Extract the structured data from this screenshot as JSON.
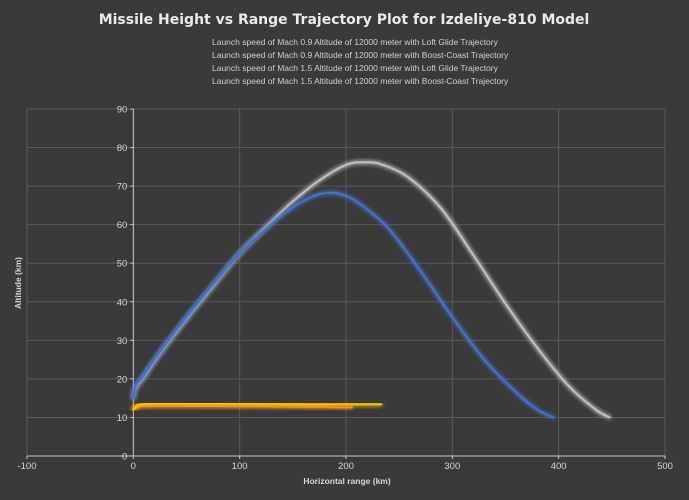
{
  "chart_data": {
    "type": "line",
    "title": "Missile Height vs Range Trajectory Plot for Izdeliye-810 Model",
    "xlabel": "Horizontal range (km)",
    "ylabel": "Altitude (km)",
    "xlim": [
      -100,
      500
    ],
    "ylim": [
      0,
      90
    ],
    "x_ticks": [
      "-100",
      "0",
      "100",
      "200",
      "300",
      "400",
      "500"
    ],
    "y_ticks": [
      "0",
      "10",
      "20",
      "30",
      "40",
      "50",
      "60",
      "70",
      "80",
      "90"
    ],
    "grid": true,
    "legend_position": "top",
    "series": [
      {
        "name": "Launch speed of Mach 0.9 Altitude of 12000 meter with Loft Glide Trajectory",
        "color": "#4472c4",
        "x": [
          0,
          2,
          10,
          25,
          50,
          75,
          100,
          125,
          150,
          170,
          185,
          200,
          215,
          240,
          270,
          300,
          330,
          360,
          380,
          395
        ],
        "y": [
          15,
          18,
          21,
          27,
          36,
          44.5,
          52.5,
          59,
          64.5,
          67.5,
          68.3,
          67.5,
          65,
          59,
          48,
          36,
          25,
          16.5,
          12,
          10
        ]
      },
      {
        "name": "Launch speed of Mach 0.9 Altitude of 12000 meter with Boost-Coast Trajectory",
        "color": "#ed7d31",
        "x": [
          0,
          3,
          8,
          20,
          50,
          100,
          150,
          200,
          205
        ],
        "y": [
          12,
          12.6,
          12.9,
          13,
          13,
          12.9,
          12.8,
          12.6,
          12.6
        ]
      },
      {
        "name": "Launch speed of Mach 1.5 Altitude of 12000 meter with Loft Glide Trajectory",
        "color": "#c0c0c0",
        "x": [
          0,
          2,
          10,
          25,
          50,
          75,
          100,
          125,
          150,
          175,
          200,
          218,
          235,
          260,
          290,
          320,
          350,
          380,
          410,
          435,
          448
        ],
        "y": [
          15,
          17.5,
          20.5,
          26.5,
          35.5,
          44,
          52.5,
          59.5,
          66,
          71.5,
          75.5,
          76.2,
          75.5,
          72,
          64,
          52,
          39.5,
          28,
          18,
          12,
          10
        ]
      },
      {
        "name": "Launch speed of Mach 1.5 Altitude of 12000 meter with Boost-Coast Trajectory",
        "color": "#ffc000",
        "x": [
          0,
          3,
          8,
          20,
          50,
          100,
          150,
          200,
          233
        ],
        "y": [
          12,
          13,
          13.4,
          13.5,
          13.5,
          13.5,
          13.4,
          13.4,
          13.4
        ]
      }
    ]
  }
}
